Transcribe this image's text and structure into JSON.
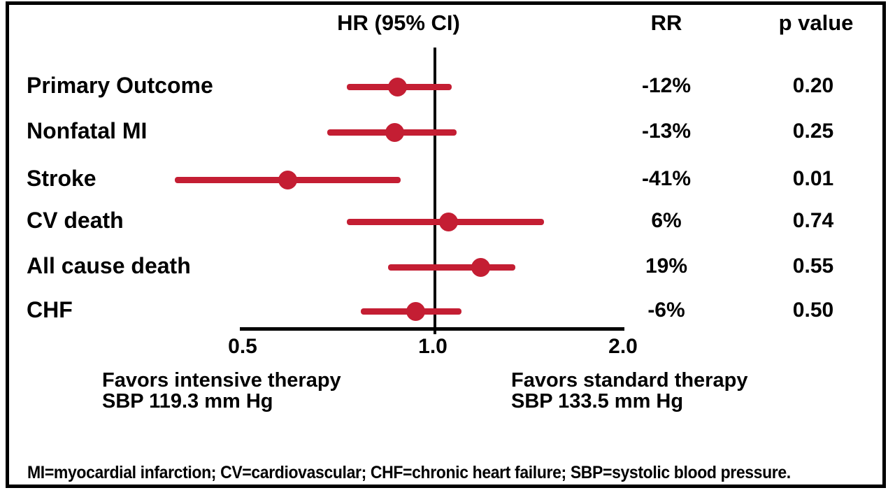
{
  "header": {
    "hr_ci_label": "HR (95% CI)",
    "rr_label": "RR",
    "p_label": "p value"
  },
  "annotations": {
    "favors_left_line1": "Favors intensive therapy",
    "favors_left_line2": "SBP 119.3 mm Hg",
    "favors_right_line1": "Favors standard therapy",
    "favors_right_line2": "SBP 133.5 mm Hg"
  },
  "footnote": "MI=myocardial infarction; CV=cardiovascular; CHF=chronic heart failure; SBP=systolic blood pressure.",
  "colors": {
    "marker_red": "#C41E33",
    "axis_black": "#000000",
    "text_black": "#000000",
    "background": "#FFFFFF"
  },
  "chart_data": {
    "type": "scatter",
    "variant": "forest-plot",
    "title": "HR (95% CI)",
    "x_scale": "log",
    "xlim": [
      0.5,
      2.0
    ],
    "x_ticks": [
      {
        "label": "0.5",
        "value": 0.5
      },
      {
        "label": "1.0",
        "value": 1.0
      },
      {
        "label": "2.0",
        "value": 2.0
      }
    ],
    "reference_line": 1.0,
    "grid": false,
    "legend": "none",
    "columns": [
      "Outcome",
      "HR",
      "CI_low",
      "CI_high",
      "RR",
      "p value"
    ],
    "rows": [
      {
        "label": "Primary Outcome",
        "hr": 0.88,
        "lo": 0.73,
        "hi": 1.07,
        "rr": "-12%",
        "p": "0.20"
      },
      {
        "label": "Nonfatal MI",
        "hr": 0.87,
        "lo": 0.68,
        "hi": 1.09,
        "rr": "-13%",
        "p": "0.25"
      },
      {
        "label": "Stroke",
        "hr": 0.59,
        "lo": 0.39,
        "hi": 0.89,
        "rr": "-41%",
        "p": "0.01"
      },
      {
        "label": "CV death",
        "hr": 1.06,
        "lo": 0.73,
        "hi": 1.5,
        "rr": "6%",
        "p": "0.74"
      },
      {
        "label": "All cause death",
        "hr": 1.19,
        "lo": 0.85,
        "hi": 1.35,
        "rr": "19%",
        "p": "0.55"
      },
      {
        "label": "CHF",
        "hr": 0.94,
        "lo": 0.77,
        "hi": 1.11,
        "rr": "-6%",
        "p": "0.50"
      }
    ]
  }
}
